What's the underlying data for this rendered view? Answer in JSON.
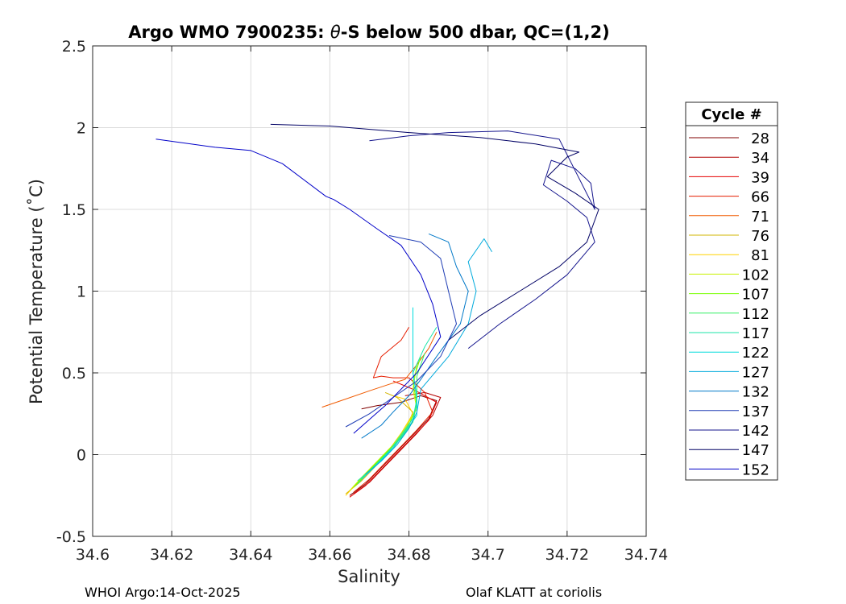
{
  "chart_data": {
    "type": "line",
    "title_prefix": "Argo WMO 7900235: ",
    "title_theta": "θ",
    "title_suffix": "-S below 500 dbar,  QC=(1,2)",
    "xlabel": "Salinity",
    "ylabel": "Potential Temperature (˚C)",
    "xlim": [
      34.6,
      34.74
    ],
    "ylim": [
      -0.5,
      2.5
    ],
    "xticks": [
      34.6,
      34.62,
      34.64,
      34.66,
      34.68,
      34.7,
      34.72,
      34.74
    ],
    "xtick_labels": [
      "34.6",
      "34.62",
      "34.64",
      "34.66",
      "34.68",
      "34.7",
      "34.72",
      "34.74"
    ],
    "yticks": [
      -0.5,
      0,
      0.5,
      1,
      1.5,
      2,
      2.5
    ],
    "ytick_labels": [
      "-0.5",
      "0",
      "0.5",
      "1",
      "1.5",
      "2",
      "2.5"
    ],
    "grid": true,
    "legend_title": "Cycle #",
    "legend_position": "outside-right",
    "series": [
      {
        "name": "28",
        "color": "#800000",
        "x": [
          34.665,
          34.669,
          34.673,
          34.677,
          34.681,
          34.685,
          34.687,
          34.683,
          34.678,
          34.672,
          34.668
        ],
        "y": [
          -0.25,
          -0.18,
          -0.08,
          0.02,
          0.12,
          0.22,
          0.33,
          0.36,
          0.32,
          0.3,
          0.28
        ]
      },
      {
        "name": "34",
        "color": "#b40000",
        "x": [
          34.666,
          34.67,
          34.674,
          34.678,
          34.682,
          34.686,
          34.688,
          34.684,
          34.679
        ],
        "y": [
          -0.24,
          -0.17,
          -0.07,
          0.03,
          0.13,
          0.24,
          0.35,
          0.38,
          0.36
        ]
      },
      {
        "name": "39",
        "color": "#e60000",
        "x": [
          34.665,
          34.669,
          34.673,
          34.677,
          34.681,
          34.685,
          34.687,
          34.681,
          34.676
        ],
        "y": [
          -0.26,
          -0.19,
          -0.09,
          0.01,
          0.11,
          0.21,
          0.32,
          0.4,
          0.45
        ]
      },
      {
        "name": "66",
        "color": "#e61e00",
        "x": [
          34.666,
          34.67,
          34.674,
          34.678,
          34.682,
          34.686,
          34.684,
          34.68,
          34.676,
          34.673,
          34.671,
          34.673,
          34.678,
          34.68
        ],
        "y": [
          -0.23,
          -0.15,
          -0.05,
          0.05,
          0.15,
          0.26,
          0.38,
          0.47,
          0.47,
          0.48,
          0.47,
          0.6,
          0.7,
          0.78
        ]
      },
      {
        "name": "71",
        "color": "#f05a00",
        "x": [
          34.658,
          34.664,
          34.67,
          34.675,
          34.679,
          34.682,
          34.685,
          34.687
        ],
        "y": [
          0.29,
          0.34,
          0.39,
          0.43,
          0.46,
          0.55,
          0.65,
          0.75
        ]
      },
      {
        "name": "76",
        "color": "#d2b400",
        "x": [
          34.664,
          34.668,
          34.672,
          34.676,
          34.679,
          34.681,
          34.677,
          34.674
        ],
        "y": [
          -0.24,
          -0.16,
          -0.06,
          0.04,
          0.14,
          0.26,
          0.35,
          0.38
        ]
      },
      {
        "name": "81",
        "color": "#ffd200",
        "x": [
          34.664,
          34.667,
          34.671,
          34.675,
          34.678,
          34.681,
          34.679,
          34.676
        ],
        "y": [
          -0.25,
          -0.17,
          -0.07,
          0.03,
          0.13,
          0.25,
          0.34,
          0.36
        ]
      },
      {
        "name": "102",
        "color": "#c8f000",
        "x": [
          34.665,
          34.668,
          34.672,
          34.676,
          34.679,
          34.682,
          34.681,
          34.682
        ],
        "y": [
          -0.22,
          -0.14,
          -0.04,
          0.06,
          0.16,
          0.28,
          0.4,
          0.55
        ]
      },
      {
        "name": "107",
        "color": "#78ff00",
        "x": [
          34.666,
          34.669,
          34.673,
          34.677,
          34.68,
          34.682,
          34.681,
          34.683
        ],
        "y": [
          -0.2,
          -0.12,
          -0.02,
          0.08,
          0.18,
          0.3,
          0.45,
          0.6
        ]
      },
      {
        "name": "112",
        "color": "#32f064",
        "x": [
          34.667,
          34.67,
          34.674,
          34.678,
          34.681,
          34.682,
          34.682,
          34.684
        ],
        "y": [
          -0.18,
          -0.1,
          0.0,
          0.1,
          0.2,
          0.32,
          0.48,
          0.62
        ]
      },
      {
        "name": "117",
        "color": "#1ee6aa",
        "x": [
          34.667,
          34.671,
          34.675,
          34.678,
          34.681,
          34.682,
          34.681,
          34.684,
          34.687
        ],
        "y": [
          -0.16,
          -0.08,
          0.02,
          0.12,
          0.22,
          0.34,
          0.5,
          0.66,
          0.78
        ]
      },
      {
        "name": "122",
        "color": "#00dcdc",
        "x": [
          34.668,
          34.672,
          34.676,
          34.679,
          34.682,
          34.682,
          34.681,
          34.681,
          34.681
        ],
        "y": [
          -0.15,
          -0.06,
          0.04,
          0.14,
          0.24,
          0.36,
          0.5,
          0.7,
          0.9
        ]
      },
      {
        "name": "127",
        "color": "#00aadc",
        "x": [
          34.669,
          34.673,
          34.677,
          34.68,
          34.682,
          34.683,
          34.69,
          34.695,
          34.697,
          34.695,
          34.699,
          34.701
        ],
        "y": [
          -0.12,
          -0.04,
          0.06,
          0.16,
          0.26,
          0.4,
          0.6,
          0.8,
          1.0,
          1.18,
          1.32,
          1.24
        ]
      },
      {
        "name": "132",
        "color": "#0078c8",
        "x": [
          34.668,
          34.673,
          34.676,
          34.68,
          34.683,
          34.687,
          34.693,
          34.695,
          34.692,
          34.69,
          34.685
        ],
        "y": [
          0.1,
          0.18,
          0.26,
          0.36,
          0.46,
          0.6,
          0.8,
          1.0,
          1.15,
          1.3,
          1.35
        ]
      },
      {
        "name": "137",
        "color": "#1e3cb4",
        "x": [
          34.664,
          34.67,
          34.676,
          34.682,
          34.688,
          34.692,
          34.69,
          34.688,
          34.683,
          34.675
        ],
        "y": [
          0.17,
          0.25,
          0.35,
          0.45,
          0.6,
          0.8,
          1.0,
          1.2,
          1.3,
          1.34
        ]
      },
      {
        "name": "142",
        "color": "#14148c",
        "x": [
          34.695,
          34.703,
          34.712,
          34.72,
          34.727,
          34.725,
          34.72,
          34.714,
          34.716,
          34.722,
          34.726,
          34.727,
          34.718,
          34.705,
          34.69,
          34.68,
          34.67
        ],
        "y": [
          0.65,
          0.8,
          0.95,
          1.1,
          1.3,
          1.45,
          1.55,
          1.65,
          1.8,
          1.75,
          1.66,
          1.5,
          1.93,
          1.98,
          1.97,
          1.95,
          1.92
        ]
      },
      {
        "name": "147",
        "color": "#000064",
        "x": [
          34.69,
          34.698,
          34.708,
          34.718,
          34.725,
          34.728,
          34.722,
          34.715,
          34.72,
          34.723,
          34.712,
          34.698,
          34.68,
          34.66,
          34.645
        ],
        "y": [
          0.7,
          0.85,
          1.0,
          1.15,
          1.3,
          1.5,
          1.6,
          1.7,
          1.82,
          1.85,
          1.9,
          1.94,
          1.97,
          2.01,
          2.02
        ]
      },
      {
        "name": "152",
        "color": "#0000c8",
        "x": [
          34.666,
          34.674,
          34.682,
          34.688,
          34.686,
          34.683,
          34.678,
          34.672,
          34.665,
          34.661,
          34.659,
          34.648,
          34.64,
          34.631,
          34.616
        ],
        "y": [
          0.13,
          0.3,
          0.5,
          0.72,
          0.92,
          1.1,
          1.28,
          1.38,
          1.5,
          1.56,
          1.58,
          1.78,
          1.86,
          1.88,
          1.93
        ]
      }
    ]
  },
  "footer": {
    "left": "WHOI Argo:14-Oct-2025",
    "right": "Olaf KLATT at coriolis"
  }
}
